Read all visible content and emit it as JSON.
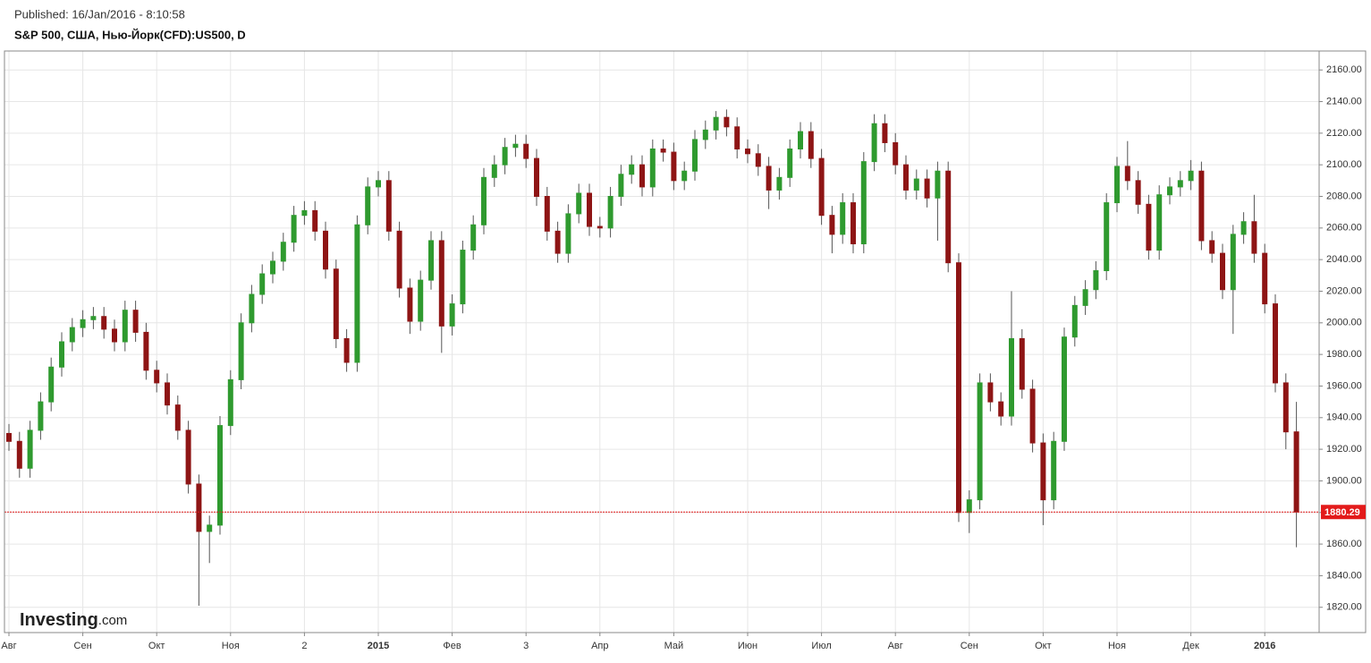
{
  "header": {
    "published": "Published: 16/Jan/2016 - 8:10:58"
  },
  "branding": {
    "name": "Investing",
    "suffix": ".com"
  },
  "chart_data": {
    "type": "candlestick",
    "title": "S&P 500, США, Нью-Йорк(CFD):US500, D",
    "up_color": "#2f9a2f",
    "down_color": "#8e1515",
    "grid": true,
    "ylim": [
      1804,
      2172
    ],
    "yticks": [
      {
        "value": 1820,
        "label": "1820.00"
      },
      {
        "value": 1840,
        "label": "1840.00"
      },
      {
        "value": 1860,
        "label": "1860.00"
      },
      {
        "value": 1880,
        "label": "1880.00"
      },
      {
        "value": 1900,
        "label": "1900.00"
      },
      {
        "value": 1920,
        "label": "1920.00"
      },
      {
        "value": 1940,
        "label": "1940.00"
      },
      {
        "value": 1960,
        "label": "1960.00"
      },
      {
        "value": 1980,
        "label": "1980.00"
      },
      {
        "value": 2000,
        "label": "2000.00"
      },
      {
        "value": 2020,
        "label": "2020.00"
      },
      {
        "value": 2040,
        "label": "2040.00"
      },
      {
        "value": 2060,
        "label": "2060.00"
      },
      {
        "value": 2080,
        "label": "2080.00"
      },
      {
        "value": 2100,
        "label": "2100.00"
      },
      {
        "value": 2120,
        "label": "2120.00"
      },
      {
        "value": 2140,
        "label": "2140.00"
      },
      {
        "value": 2160,
        "label": "2160.00"
      }
    ],
    "last_price": 1880.29,
    "last_price_color": "#e31b1b",
    "categories": [
      "Авг",
      null,
      null,
      null,
      null,
      null,
      null,
      "Сен",
      null,
      null,
      null,
      null,
      null,
      null,
      "Окт",
      null,
      null,
      null,
      null,
      null,
      null,
      "Ноя",
      null,
      null,
      null,
      null,
      null,
      null,
      "2",
      null,
      null,
      null,
      null,
      null,
      null,
      "2015",
      null,
      null,
      null,
      null,
      null,
      null,
      "Фев",
      null,
      null,
      null,
      null,
      null,
      null,
      "3",
      null,
      null,
      null,
      null,
      null,
      null,
      "Апр",
      null,
      null,
      null,
      null,
      null,
      null,
      "Май",
      null,
      null,
      null,
      null,
      null,
      null,
      "Июн",
      null,
      null,
      null,
      null,
      null,
      null,
      "Июл",
      null,
      null,
      null,
      null,
      null,
      null,
      "Авг",
      null,
      null,
      null,
      null,
      null,
      null,
      "Сен",
      null,
      null,
      null,
      null,
      null,
      null,
      "Окт",
      null,
      null,
      null,
      null,
      null,
      null,
      "Ноя",
      null,
      null,
      null,
      null,
      null,
      null,
      "Дек",
      null,
      null,
      null,
      null,
      null,
      null,
      "2016",
      null,
      null,
      null
    ],
    "open": [
      1930,
      1925,
      1908,
      1932,
      1950,
      1972,
      1988,
      1997,
      2002,
      2004,
      1996,
      1988,
      2008,
      1994,
      1970,
      1962,
      1948,
      1932,
      1898,
      1868,
      1872,
      1935,
      1964,
      2000,
      2018,
      2031,
      2039,
      2051,
      2068,
      2071,
      2058,
      2034,
      1990,
      1975,
      2062,
      2086,
      2090,
      2058,
      2022,
      2001,
      2027,
      2052,
      1998,
      2012,
      2046,
      2062,
      2092,
      2100,
      2111,
      2113,
      2104,
      2080,
      2058,
      2044,
      2069,
      2082,
      2061,
      2060,
      2080,
      2094,
      2100,
      2086,
      2110,
      2108,
      2090,
      2096,
      2116,
      2122,
      2130,
      2124,
      2110,
      2107,
      2099,
      2084,
      2092,
      2110,
      2121,
      2104,
      2068,
      2056,
      2076,
      2050,
      2102,
      2126,
      2114,
      2100,
      2084,
      2091,
      2079,
      2096,
      2038,
      1880,
      1888,
      1962,
      1950,
      1941,
      1990,
      1958,
      1924,
      1888,
      1925,
      1991,
      2011,
      2021,
      2033,
      2076,
      2099,
      2090,
      2075,
      2046,
      2081,
      2086,
      2090,
      2096,
      2052,
      2044,
      2021,
      2056,
      2064,
      2044,
      2012,
      1962,
      1931
    ],
    "high": [
      1936,
      1931,
      1938,
      1956,
      1978,
      1994,
      2003,
      2008,
      2010,
      2010,
      2002,
      2014,
      2014,
      2000,
      1976,
      1968,
      1954,
      1938,
      1904,
      1878,
      1941,
      1970,
      2006,
      2024,
      2037,
      2045,
      2057,
      2074,
      2077,
      2077,
      2064,
      2040,
      1996,
      2068,
      2092,
      2096,
      2096,
      2064,
      2028,
      2033,
      2058,
      2058,
      2018,
      2052,
      2068,
      2098,
      2106,
      2117,
      2119,
      2119,
      2110,
      2086,
      2064,
      2075,
      2088,
      2088,
      2067,
      2086,
      2100,
      2106,
      2106,
      2116,
      2116,
      2114,
      2102,
      2122,
      2128,
      2134,
      2135,
      2130,
      2116,
      2113,
      2105,
      2098,
      2116,
      2127,
      2127,
      2110,
      2074,
      2082,
      2082,
      2108,
      2132,
      2132,
      2120,
      2106,
      2097,
      2097,
      2102,
      2102,
      2044,
      1894,
      1968,
      1968,
      1956,
      2020,
      1996,
      1964,
      1930,
      1931,
      1997,
      2017,
      2027,
      2039,
      2082,
      2105,
      2115,
      2096,
      2081,
      2087,
      2092,
      2096,
      2103,
      2102,
      2058,
      2050,
      2062,
      2070,
      2081,
      2050,
      2018,
      1968,
      1950
    ],
    "low": [
      1919,
      1902,
      1902,
      1926,
      1944,
      1966,
      1982,
      1991,
      1996,
      1990,
      1982,
      1982,
      1988,
      1964,
      1956,
      1942,
      1926,
      1892,
      1821,
      1848,
      1866,
      1929,
      1958,
      1994,
      2012,
      2025,
      2033,
      2045,
      2062,
      2052,
      2028,
      1984,
      1969,
      1969,
      2056,
      2080,
      2052,
      2016,
      1993,
      1995,
      2021,
      1981,
      1992,
      2006,
      2040,
      2056,
      2086,
      2094,
      2105,
      2098,
      2074,
      2052,
      2038,
      2038,
      2063,
      2055,
      2054,
      2054,
      2074,
      2088,
      2080,
      2080,
      2102,
      2084,
      2084,
      2090,
      2110,
      2116,
      2118,
      2104,
      2101,
      2093,
      2072,
      2078,
      2086,
      2104,
      2098,
      2062,
      2044,
      2050,
      2044,
      2044,
      2096,
      2108,
      2094,
      2078,
      2078,
      2073,
      2052,
      2032,
      1874,
      1867,
      1882,
      1944,
      1935,
      1935,
      1952,
      1918,
      1872,
      1882,
      1919,
      1985,
      2005,
      2015,
      2027,
      2070,
      2084,
      2069,
      2040,
      2040,
      2075,
      2080,
      2084,
      2046,
      2038,
      2015,
      1993,
      2050,
      2038,
      2006,
      1956,
      1920,
      1858
    ],
    "close": [
      1925,
      1908,
      1932,
      1950,
      1972,
      1988,
      1997,
      2002,
      2004,
      1996,
      1988,
      2008,
      1994,
      1970,
      1962,
      1948,
      1932,
      1898,
      1868,
      1872,
      1935,
      1964,
      2000,
      2018,
      2031,
      2039,
      2051,
      2068,
      2071,
      2058,
      2034,
      1990,
      1975,
      2062,
      2086,
      2090,
      2058,
      2022,
      2001,
      2027,
      2052,
      1998,
      2012,
      2046,
      2062,
      2092,
      2100,
      2111,
      2113,
      2104,
      2080,
      2058,
      2044,
      2069,
      2082,
      2061,
      2060,
      2080,
      2094,
      2100,
      2086,
      2110,
      2108,
      2090,
      2096,
      2116,
      2122,
      2130,
      2124,
      2110,
      2107,
      2099,
      2084,
      2092,
      2110,
      2121,
      2104,
      2068,
      2056,
      2076,
      2050,
      2102,
      2126,
      2114,
      2100,
      2084,
      2091,
      2079,
      2096,
      2038,
      1880,
      1888,
      1962,
      1950,
      1941,
      1990,
      1958,
      1924,
      1888,
      1925,
      1991,
      2011,
      2021,
      2033,
      2076,
      2099,
      2090,
      2075,
      2046,
      2081,
      2086,
      2090,
      2096,
      2052,
      2044,
      2021,
      2056,
      2064,
      2044,
      2012,
      1962,
      1931,
      1880.29
    ]
  }
}
